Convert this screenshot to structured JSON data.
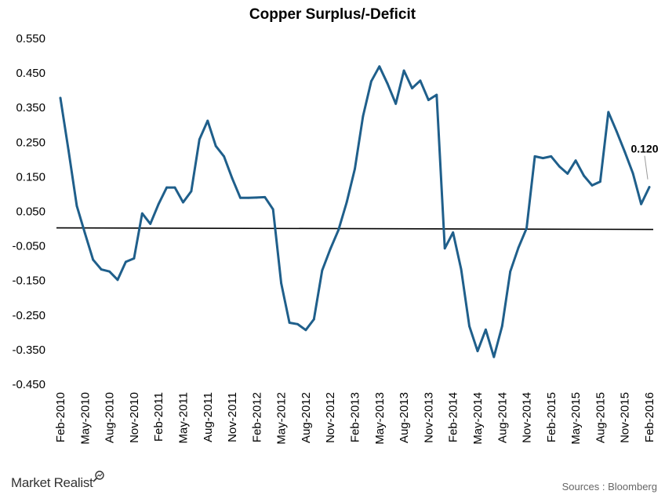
{
  "chart_data": {
    "type": "line",
    "title": "Copper Surplus/-Deficit",
    "xlabel": "",
    "ylabel": "",
    "ylim": [
      -0.45,
      0.55
    ],
    "y_ticks": [
      "0.550",
      "0.450",
      "0.350",
      "0.250",
      "0.150",
      "0.050",
      "-0.050",
      "-0.150",
      "-0.250",
      "-0.350",
      "-0.450"
    ],
    "x_ticks": [
      "Feb-2010",
      "May-2010",
      "Aug-2010",
      "Nov-2010",
      "Feb-2011",
      "May-2011",
      "Aug-2011",
      "Nov-2011",
      "Feb-2012",
      "May-2012",
      "Aug-2012",
      "Nov-2012",
      "Feb-2013",
      "May-2013",
      "Aug-2013",
      "Nov-2013",
      "Feb-2014",
      "May-2014",
      "Aug-2014",
      "Nov-2014",
      "Feb-2015",
      "May-2015",
      "Aug-2015",
      "Nov-2015",
      "Feb-2016"
    ],
    "grid": false,
    "zero_line": true,
    "line_color": "#1F5F8B",
    "series": [
      {
        "name": "",
        "x": [
          "Feb-2010",
          "Mar-2010",
          "Apr-2010",
          "May-2010",
          "Jun-2010",
          "Jul-2010",
          "Aug-2010",
          "Sep-2010",
          "Oct-2010",
          "Nov-2010",
          "Dec-2010",
          "Jan-2011",
          "Feb-2011",
          "Mar-2011",
          "Apr-2011",
          "May-2011",
          "Jun-2011",
          "Jul-2011",
          "Aug-2011",
          "Sep-2011",
          "Oct-2011",
          "Nov-2011",
          "Dec-2011",
          "Jan-2012",
          "Feb-2012",
          "Mar-2012",
          "Apr-2012",
          "May-2012",
          "Jun-2012",
          "Jul-2012",
          "Aug-2012",
          "Sep-2012",
          "Oct-2012",
          "Nov-2012",
          "Dec-2012",
          "Jan-2013",
          "Feb-2013",
          "Mar-2013",
          "Apr-2013",
          "May-2013",
          "Jun-2013",
          "Jul-2013",
          "Aug-2013",
          "Sep-2013",
          "Oct-2013",
          "Nov-2013",
          "Dec-2013",
          "Jan-2014",
          "Feb-2014",
          "Mar-2014",
          "Apr-2014",
          "May-2014",
          "Jun-2014",
          "Jul-2014",
          "Aug-2014",
          "Sep-2014",
          "Oct-2014",
          "Nov-2014",
          "Dec-2014",
          "Jan-2015",
          "Feb-2015",
          "Mar-2015",
          "Apr-2015",
          "May-2015",
          "Jun-2015",
          "Jul-2015",
          "Aug-2015",
          "Sep-2015",
          "Oct-2015",
          "Nov-2015",
          "Dec-2015",
          "Jan-2016",
          "Feb-2016"
        ],
        "values": [
          0.378,
          0.226,
          0.066,
          -0.013,
          -0.09,
          -0.118,
          -0.124,
          -0.148,
          -0.096,
          -0.086,
          0.044,
          0.014,
          0.071,
          0.119,
          0.119,
          0.076,
          0.108,
          0.258,
          0.312,
          0.239,
          0.209,
          0.146,
          0.089,
          0.089,
          0.09,
          0.091,
          0.056,
          -0.158,
          -0.272,
          -0.276,
          -0.293,
          -0.262,
          -0.121,
          -0.059,
          -0.004,
          0.076,
          0.173,
          0.325,
          0.426,
          0.469,
          0.419,
          0.361,
          0.457,
          0.406,
          0.428,
          0.372,
          0.387,
          -0.057,
          -0.011,
          -0.118,
          -0.282,
          -0.354,
          -0.292,
          -0.371,
          -0.282,
          -0.124,
          -0.055,
          0.001,
          0.209,
          0.204,
          0.209,
          0.18,
          0.159,
          0.197,
          0.153,
          0.125,
          0.136,
          0.337,
          0.281,
          0.222,
          0.16,
          0.071,
          0.12
        ]
      }
    ],
    "annotations": [
      {
        "text": "0.120",
        "x": "Feb-2016",
        "y": 0.12
      }
    ]
  },
  "footer": {
    "brand": "Market Realist",
    "source": "Sources : Bloomberg"
  }
}
